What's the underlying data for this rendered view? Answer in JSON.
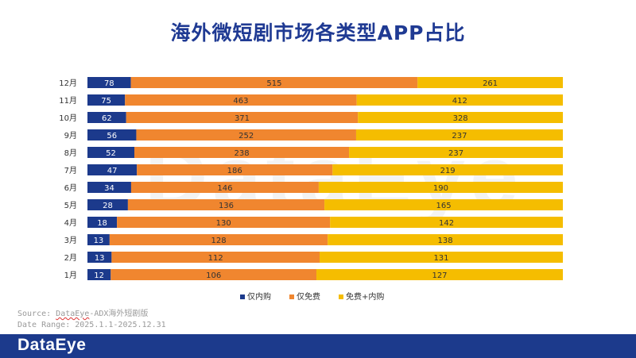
{
  "title": "海外微短剧市场各类型APP占比",
  "watermark": "DataEye",
  "footer": {
    "logo": "DataEye",
    "source_prefix": "Source: ",
    "source_brand": "DataEye",
    "source_suffix": "-ADX海外短剧版",
    "date_range": "Date Range: 2025.1.1-2025.12.31"
  },
  "colors": {
    "series": [
      "#1c3a8c",
      "#f0862f",
      "#f5bd00"
    ],
    "title": "#1f3a93",
    "footer": "#1c3a8c"
  },
  "chart_data": {
    "type": "bar",
    "orientation": "horizontal",
    "stacked": "100%",
    "title": "海外微短剧市场各类型APP占比",
    "categories": [
      "1月",
      "2月",
      "3月",
      "4月",
      "5月",
      "6月",
      "7月",
      "8月",
      "9月",
      "10月",
      "11月",
      "12月"
    ],
    "series": [
      {
        "name": "仅内购",
        "values": [
          12,
          13,
          13,
          18,
          28,
          34,
          47,
          52,
          56,
          62,
          75,
          78
        ]
      },
      {
        "name": "仅免费",
        "values": [
          106,
          112,
          128,
          130,
          136,
          146,
          186,
          238,
          252,
          371,
          463,
          515
        ]
      },
      {
        "name": "免费+内购",
        "values": [
          127,
          131,
          138,
          142,
          165,
          190,
          219,
          237,
          237,
          328,
          412,
          261
        ]
      }
    ],
    "legend_position": "bottom-center",
    "grid": false
  }
}
